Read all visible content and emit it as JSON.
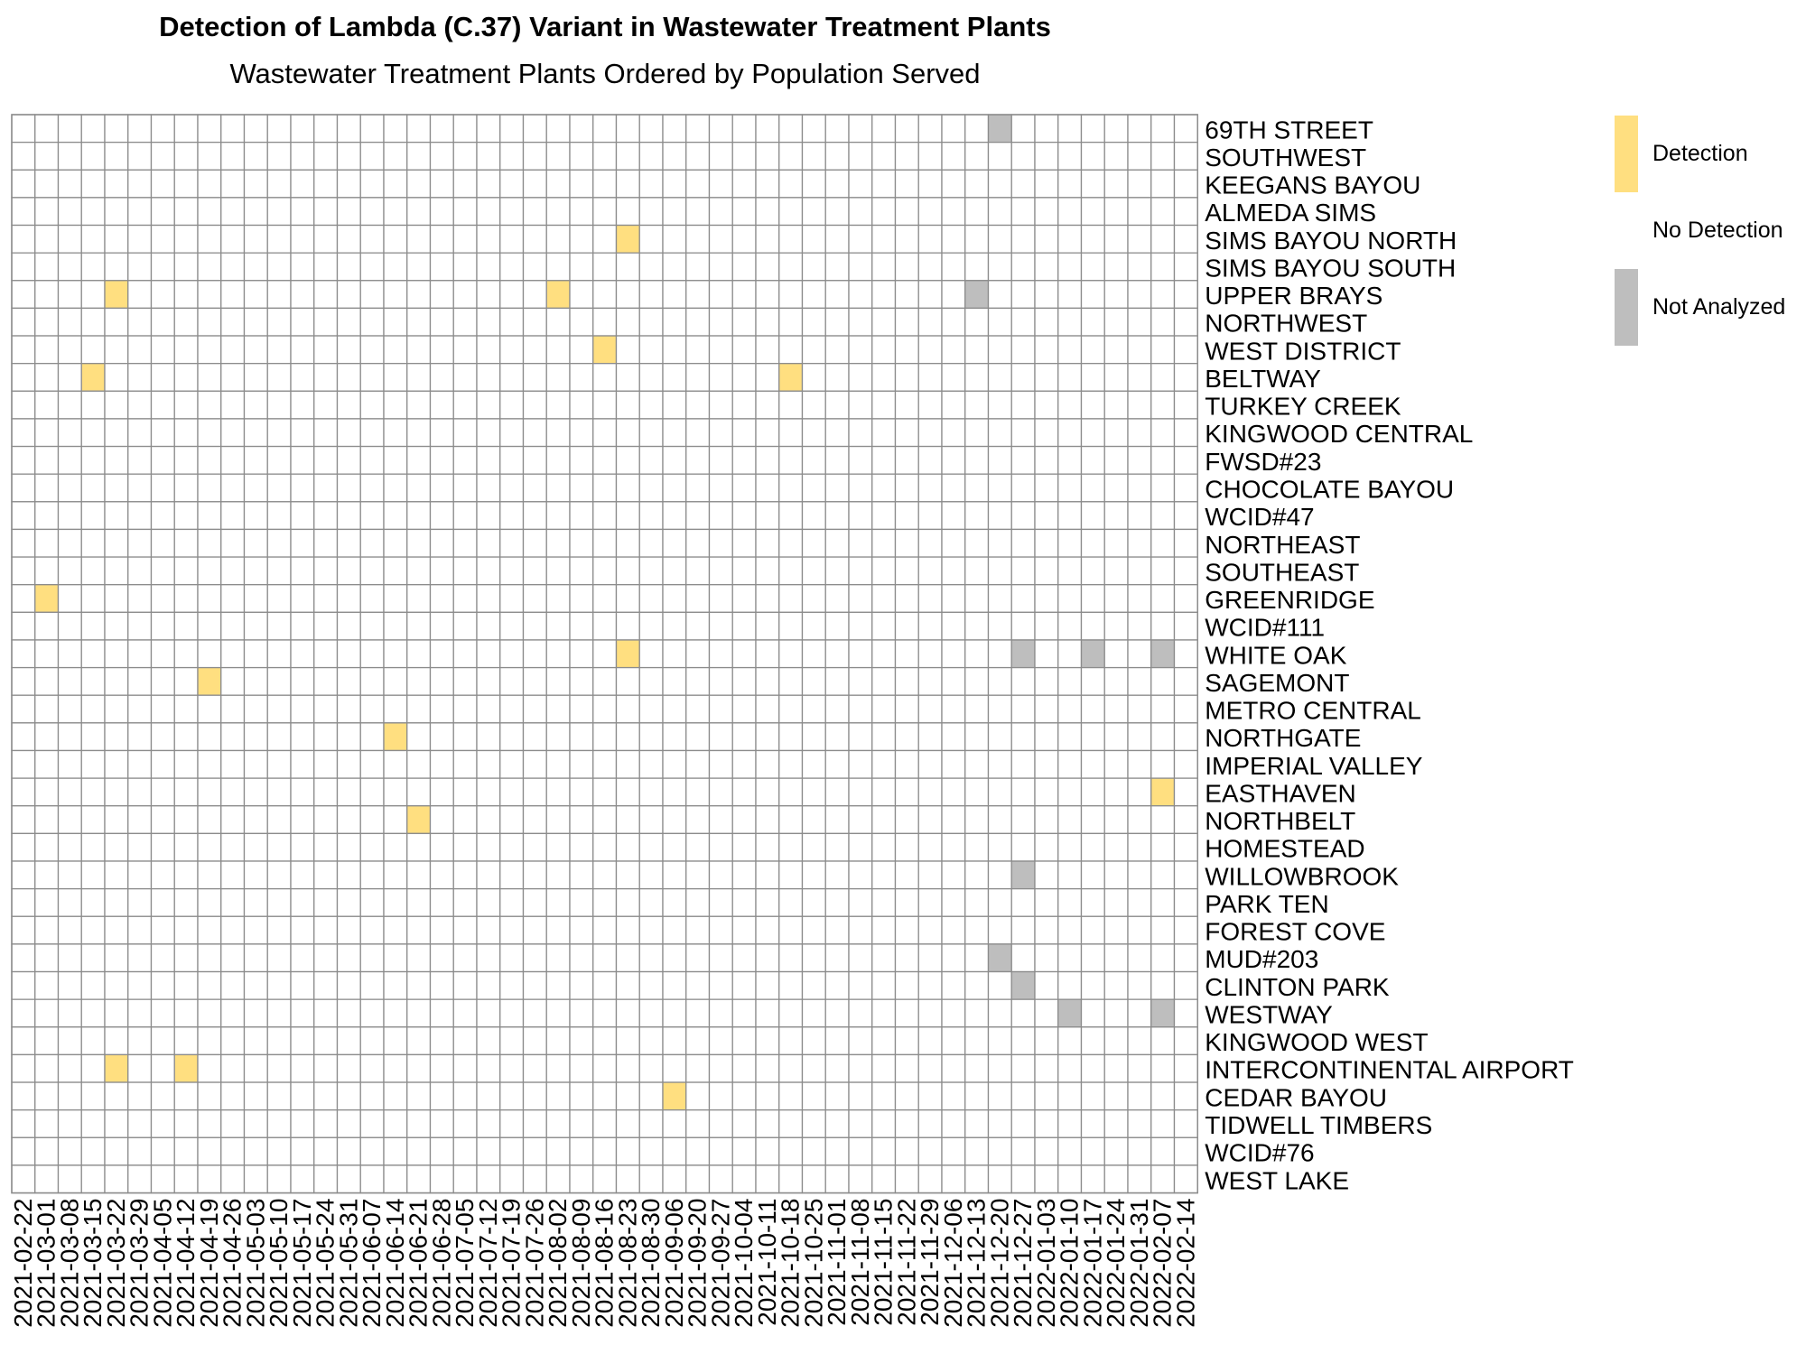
{
  "chart_data": {
    "type": "heatmap",
    "title": "Detection of Lambda (C.37) Variant in Wastewater Treatment Plants",
    "subtitle": "Wastewater Treatment Plants Ordered by Population Served",
    "x": [
      "2021-02-22",
      "2021-03-01",
      "2021-03-08",
      "2021-03-15",
      "2021-03-22",
      "2021-03-29",
      "2021-04-05",
      "2021-04-12",
      "2021-04-19",
      "2021-04-26",
      "2021-05-03",
      "2021-05-10",
      "2021-05-17",
      "2021-05-24",
      "2021-05-31",
      "2021-06-07",
      "2021-06-14",
      "2021-06-21",
      "2021-06-28",
      "2021-07-05",
      "2021-07-12",
      "2021-07-19",
      "2021-07-26",
      "2021-08-02",
      "2021-08-09",
      "2021-08-16",
      "2021-08-23",
      "2021-08-30",
      "2021-09-06",
      "2021-09-20",
      "2021-09-27",
      "2021-10-04",
      "2021-10-11",
      "2021-10-18",
      "2021-10-25",
      "2021-11-01",
      "2021-11-08",
      "2021-11-15",
      "2021-11-22",
      "2021-11-29",
      "2021-12-06",
      "2021-12-13",
      "2021-12-20",
      "2021-12-27",
      "2022-01-03",
      "2022-01-10",
      "2022-01-17",
      "2022-01-24",
      "2022-01-31",
      "2022-02-07",
      "2022-02-14"
    ],
    "y": [
      "69TH STREET",
      "SOUTHWEST",
      "KEEGANS BAYOU",
      "ALMEDA SIMS",
      "SIMS BAYOU NORTH",
      "SIMS BAYOU SOUTH",
      "UPPER BRAYS",
      "NORTHWEST",
      "WEST DISTRICT",
      "BELTWAY",
      "TURKEY CREEK",
      "KINGWOOD CENTRAL",
      "FWSD#23",
      "CHOCOLATE BAYOU",
      "WCID#47",
      "NORTHEAST",
      "SOUTHEAST",
      "GREENRIDGE",
      "WCID#111",
      "WHITE OAK",
      "SAGEMONT",
      "METRO CENTRAL",
      "NORTHGATE",
      "IMPERIAL VALLEY",
      "EASTHAVEN",
      "NORTHBELT",
      "HOMESTEAD",
      "WILLOWBROOK",
      "PARK TEN",
      "FOREST COVE",
      "MUD#203",
      "CLINTON PARK",
      "WESTWAY",
      "KINGWOOD WEST",
      "INTERCONTINENTAL AIRPORT",
      "CEDAR BAYOU",
      "TIDWELL TIMBERS",
      "WCID#76",
      "WEST LAKE"
    ],
    "default_status": "No Detection",
    "detections": [
      {
        "plant": "SIMS BAYOU NORTH",
        "date": "2021-08-23"
      },
      {
        "plant": "UPPER BRAYS",
        "date": "2021-03-22"
      },
      {
        "plant": "UPPER BRAYS",
        "date": "2021-08-02"
      },
      {
        "plant": "WEST DISTRICT",
        "date": "2021-08-16"
      },
      {
        "plant": "BELTWAY",
        "date": "2021-03-15"
      },
      {
        "plant": "BELTWAY",
        "date": "2021-10-18"
      },
      {
        "plant": "GREENRIDGE",
        "date": "2021-03-01"
      },
      {
        "plant": "WHITE OAK",
        "date": "2021-08-23"
      },
      {
        "plant": "SAGEMONT",
        "date": "2021-04-19"
      },
      {
        "plant": "NORTHGATE",
        "date": "2021-06-14"
      },
      {
        "plant": "EASTHAVEN",
        "date": "2022-02-07"
      },
      {
        "plant": "NORTHBELT",
        "date": "2021-06-21"
      },
      {
        "plant": "INTERCONTINENTAL AIRPORT",
        "date": "2021-03-22"
      },
      {
        "plant": "INTERCONTINENTAL AIRPORT",
        "date": "2021-04-12"
      },
      {
        "plant": "CEDAR BAYOU",
        "date": "2021-09-06"
      }
    ],
    "not_analyzed": [
      {
        "plant": "69TH STREET",
        "date": "2021-12-20"
      },
      {
        "plant": "UPPER BRAYS",
        "date": "2021-12-13"
      },
      {
        "plant": "WHITE OAK",
        "date": "2021-12-27"
      },
      {
        "plant": "WHITE OAK",
        "date": "2022-01-17"
      },
      {
        "plant": "WHITE OAK",
        "date": "2022-02-07"
      },
      {
        "plant": "WILLOWBROOK",
        "date": "2021-12-27"
      },
      {
        "plant": "MUD#203",
        "date": "2021-12-20"
      },
      {
        "plant": "CLINTON PARK",
        "date": "2021-12-27"
      },
      {
        "plant": "WESTWAY",
        "date": "2022-01-10"
      },
      {
        "plant": "WESTWAY",
        "date": "2022-02-07"
      }
    ],
    "legend": [
      {
        "label": "Detection",
        "color": "#FFDF80"
      },
      {
        "label": "No Detection",
        "color": "#FFFFFF"
      },
      {
        "label": "Not Analyzed",
        "color": "#BEBEBE"
      }
    ],
    "grid_color": "#8C8C8C",
    "legend_position": "right"
  }
}
